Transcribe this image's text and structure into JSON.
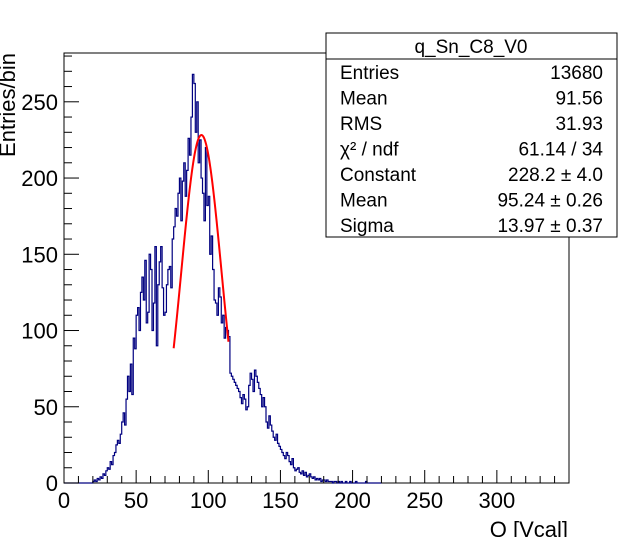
{
  "chart_data": {
    "type": "histogram",
    "title": "",
    "xlabel": "Q [Vcal]",
    "ylabel": "Entries/bin",
    "xlim": [
      0,
      350
    ],
    "ylim": [
      0,
      282
    ],
    "x_ticks": [
      0,
      50,
      100,
      150,
      200,
      250,
      300
    ],
    "y_ticks": [
      0,
      50,
      100,
      150,
      200,
      250
    ],
    "bin_width": 1,
    "histogram": {
      "color": "#000080",
      "x_start": 0,
      "values": [
        0,
        0,
        0,
        0,
        0,
        0,
        0,
        0,
        0,
        0,
        0,
        0,
        0,
        0,
        0,
        0,
        0,
        0,
        0,
        0,
        1,
        2,
        1,
        3,
        2,
        4,
        3,
        6,
        5,
        8,
        10,
        9,
        14,
        12,
        18,
        20,
        25,
        28,
        26,
        32,
        40,
        46,
        38,
        55,
        70,
        60,
        78,
        58,
        95,
        88,
        110,
        115,
        100,
        125,
        135,
        120,
        146,
        105,
        112,
        150,
        140,
        100,
        118,
        155,
        90,
        130,
        145,
        155,
        128,
        110,
        112,
        130,
        140,
        142,
        128,
        160,
        168,
        180,
        175,
        190,
        200,
        172,
        198,
        210,
        188,
        205,
        226,
        215,
        240,
        268,
        262,
        230,
        250,
        210,
        225,
        200,
        190,
        172,
        220,
        182,
        188,
        150,
        162,
        140,
        120,
        118,
        110,
        128,
        122,
        105,
        110,
        95,
        102,
        100,
        96,
        72,
        70,
        68,
        66,
        64,
        62,
        60,
        56,
        52,
        58,
        55,
        48,
        50,
        64,
        72,
        68,
        60,
        74,
        70,
        66,
        62,
        58,
        50,
        56,
        50,
        40,
        36,
        44,
        38,
        34,
        30,
        28,
        32,
        26,
        24,
        22,
        20,
        18,
        16,
        20,
        18,
        14,
        12,
        16,
        10,
        8,
        9,
        10,
        7,
        6,
        8,
        5,
        7,
        4,
        5,
        6,
        4,
        3,
        4,
        2,
        3,
        2,
        3,
        1,
        2,
        2,
        1,
        2,
        1,
        1,
        1,
        0,
        1,
        1,
        0,
        1,
        0,
        1,
        0,
        0,
        1,
        0,
        0,
        1,
        0,
        0,
        0,
        1,
        0,
        0,
        0,
        0,
        0,
        0,
        1,
        0,
        0,
        0,
        0,
        0,
        0,
        0,
        0,
        0,
        0
      ]
    },
    "fit": {
      "function": "gaus",
      "color": "#ff0000",
      "range": [
        76,
        114
      ],
      "constant": 228.2,
      "mean": 95.24,
      "sigma": 13.97
    },
    "stats_box": {
      "name": "q_Sn_C8_V0",
      "rows": [
        {
          "label": "Entries",
          "value": "13680"
        },
        {
          "label": "Mean",
          "value": "91.56"
        },
        {
          "label": "RMS",
          "value": "31.93"
        },
        {
          "label": "χ² / ndf",
          "value": "61.14 / 34"
        },
        {
          "label": "Constant",
          "value": "228.2 ± 4.0"
        },
        {
          "label": "Mean",
          "value": "95.24 ± 0.26"
        },
        {
          "label": "Sigma",
          "value": "13.97 ± 0.37"
        }
      ]
    },
    "grid": false,
    "legend": "top-right"
  }
}
